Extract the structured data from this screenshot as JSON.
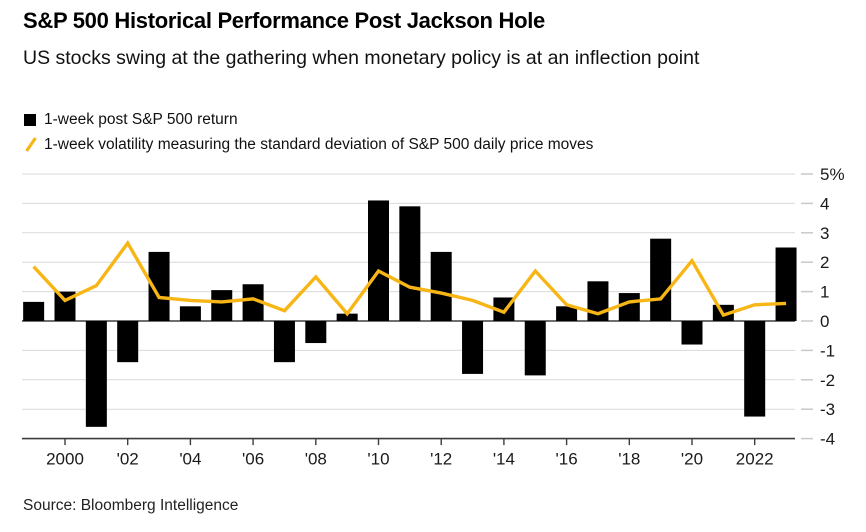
{
  "header": {
    "title": "S&P 500 Historical Performance Post Jackson Hole",
    "subtitle": "US stocks swing at the gathering when monetary policy is at an inflection point"
  },
  "legend": {
    "bar_label": "1-week post S&P 500 return",
    "line_label": "1-week volatility measuring the standard deviation of S&P 500 daily price moves"
  },
  "source": "Source: Bloomberg Intelligence",
  "colors": {
    "bar": "#000000",
    "line": "#F7B616",
    "grid": "#D9D9D9",
    "zero_line": "#6F6F6F",
    "axis": "#3D3D3D",
    "tick_dash": "#C9C9C9",
    "label": "#1A1A1A"
  },
  "chart_data": {
    "type": "bar",
    "title": "S&P 500 Historical Performance Post Jackson Hole",
    "xlabel": "",
    "ylabel": "%",
    "ylim": [
      -4,
      5
    ],
    "grid": "horizontal",
    "legend_position": "top-left",
    "y_axis_side": "right",
    "x": [
      1999,
      2000,
      2001,
      2002,
      2003,
      2004,
      2005,
      2006,
      2007,
      2008,
      2009,
      2010,
      2011,
      2012,
      2013,
      2014,
      2015,
      2016,
      2017,
      2018,
      2019,
      2020,
      2021,
      2022,
      2023
    ],
    "series": [
      {
        "name": "1-week post S&P 500 return",
        "type": "bar",
        "values": [
          0.65,
          1.0,
          -3.6,
          -1.4,
          2.35,
          0.5,
          1.05,
          1.25,
          -1.4,
          -0.75,
          0.25,
          4.1,
          3.9,
          2.35,
          -1.8,
          0.8,
          -1.85,
          0.5,
          1.35,
          0.95,
          2.8,
          -0.8,
          0.55,
          -3.25,
          2.5
        ]
      },
      {
        "name": "1-week volatility measuring the standard deviation of S&P 500 daily price moves",
        "type": "line",
        "values": [
          1.85,
          0.7,
          1.2,
          2.65,
          0.8,
          0.7,
          0.65,
          0.75,
          0.35,
          1.5,
          0.25,
          1.7,
          1.15,
          0.95,
          0.7,
          0.3,
          1.7,
          0.55,
          0.25,
          0.65,
          0.75,
          2.05,
          0.2,
          0.55,
          0.6
        ]
      }
    ],
    "ytick_values": [
      5,
      4,
      3,
      2,
      1,
      0,
      -1,
      -2,
      -3,
      -4
    ],
    "ytick_labels": [
      "5%",
      "4",
      "3",
      "2",
      "1",
      "0",
      "-1",
      "-2",
      "-3",
      "-4"
    ],
    "xticks": [
      {
        "year": 2000,
        "label": "2000"
      },
      {
        "year": 2002,
        "label": "'02"
      },
      {
        "year": 2004,
        "label": "'04"
      },
      {
        "year": 2006,
        "label": "'06"
      },
      {
        "year": 2008,
        "label": "'08"
      },
      {
        "year": 2010,
        "label": "'10"
      },
      {
        "year": 2012,
        "label": "'12"
      },
      {
        "year": 2014,
        "label": "'14"
      },
      {
        "year": 2016,
        "label": "'16"
      },
      {
        "year": 2018,
        "label": "'18"
      },
      {
        "year": 2020,
        "label": "'20"
      },
      {
        "year": 2022,
        "label": "2022"
      }
    ]
  }
}
